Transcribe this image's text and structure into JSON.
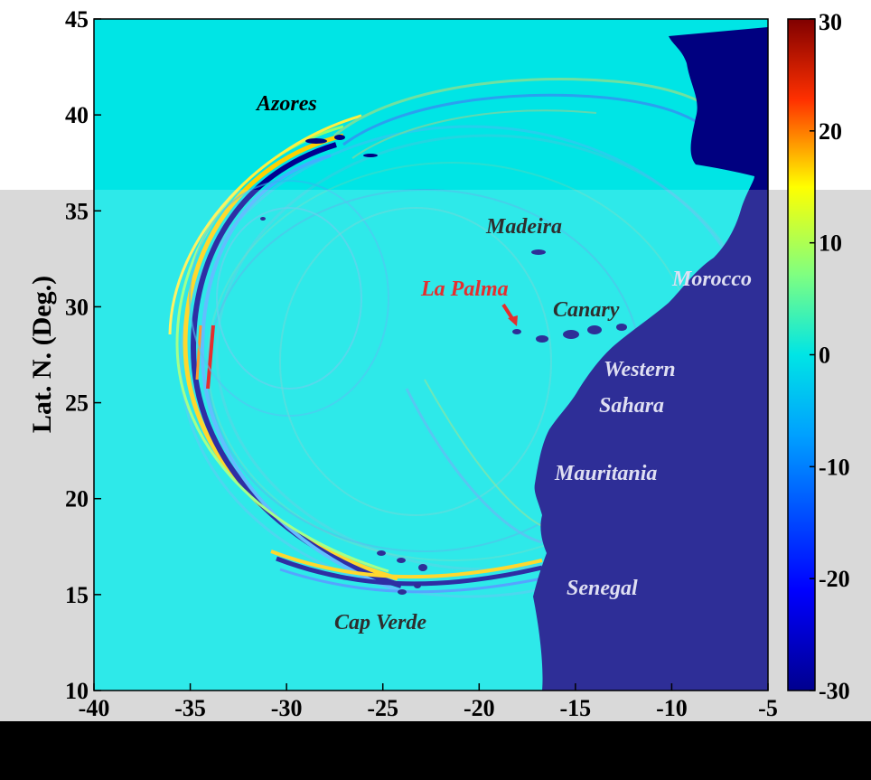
{
  "map": {
    "xlim": [
      -40,
      -5
    ],
    "ylim": [
      10,
      45
    ],
    "x_ticks": [
      "-40",
      "-35",
      "-30",
      "-25",
      "-20",
      "-15",
      "-10",
      "-5"
    ],
    "y_ticks": [
      "10",
      "15",
      "20",
      "25",
      "30",
      "35",
      "40",
      "45"
    ],
    "ylabel": "Lat. N. (Deg.)",
    "ocean_color": "#00e5e5",
    "land_color": "#000080",
    "source_marker_color": "#e00000",
    "source_marker": "arrow-icon",
    "labels": {
      "azores": "Azores",
      "madeira": "Madeira",
      "la_palma": "La Palma",
      "canary": "Canary",
      "morocco": "Morocco",
      "western": "Western",
      "sahara": "Sahara",
      "mauritania": "Mauritania",
      "senegal": "Senegal",
      "cap_verde": "Cap Verde"
    },
    "label_colors": {
      "dark": "#000000",
      "source": "#e00000",
      "land": "#d8d8f0"
    }
  },
  "colorbar": {
    "range": [
      -30,
      30
    ],
    "ticks": [
      "30",
      "20",
      "10",
      "0",
      "-10",
      "-20",
      "-30"
    ],
    "colormap": [
      "#00008f",
      "#0000ff",
      "#00ffff",
      "#ffff00",
      "#ff0000",
      "#800000"
    ]
  }
}
